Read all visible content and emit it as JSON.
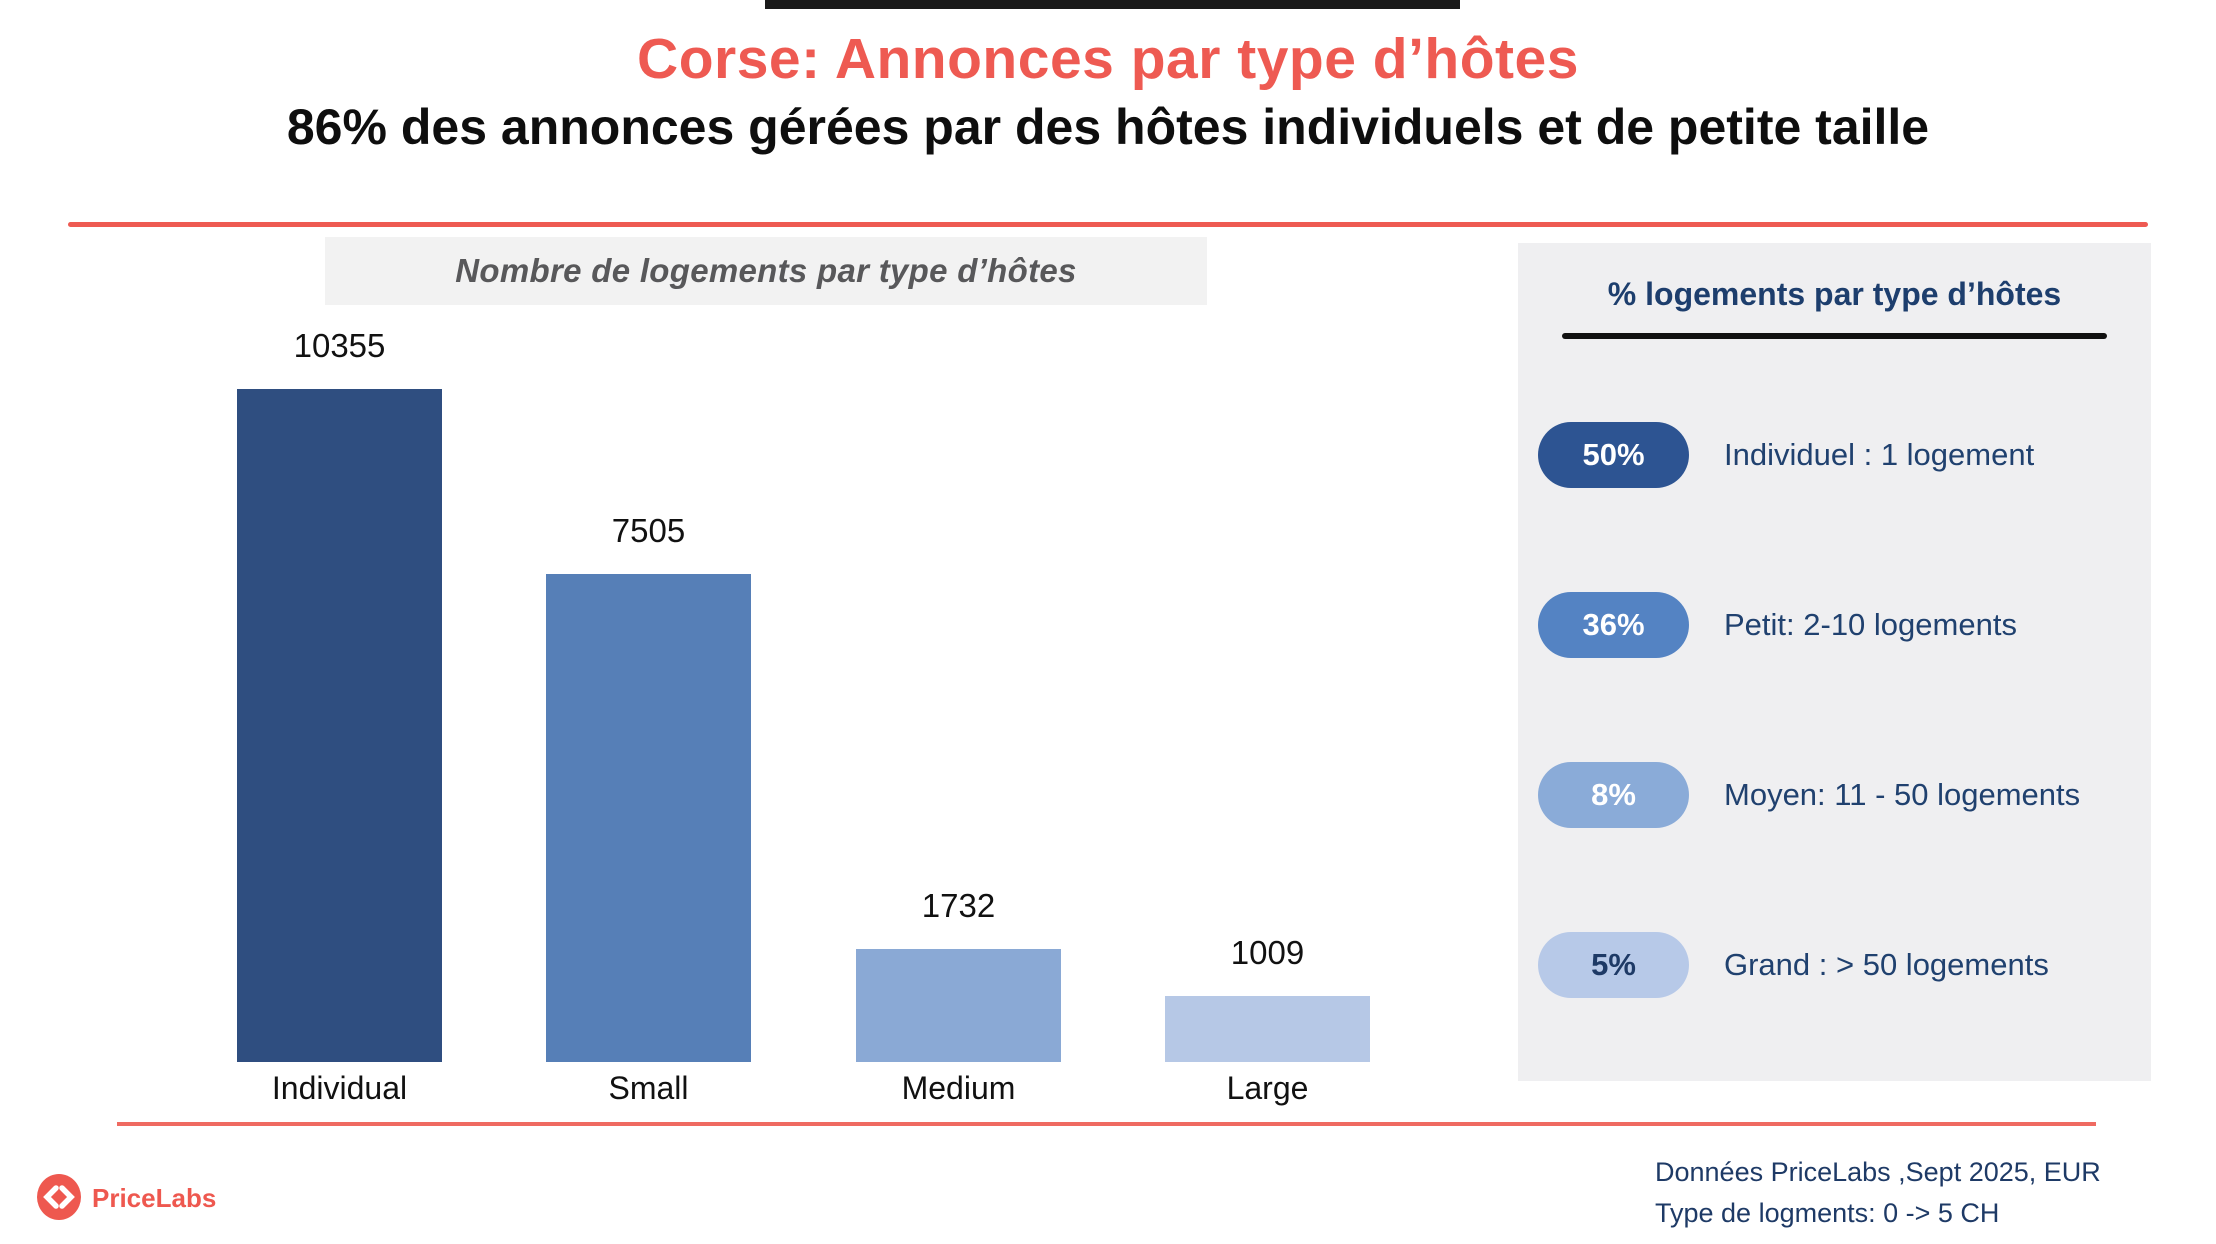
{
  "header": {
    "title": "Corse: Annonces par type d’hôtes",
    "subtitle": "86% des annonces gérées par des hôtes individuels et de petite taille"
  },
  "chart_data": {
    "type": "bar",
    "title": "Nombre de logements par type d’hôtes",
    "categories": [
      "Individual",
      "Small",
      "Medium",
      "Large"
    ],
    "values": [
      10355,
      7505,
      1732,
      1009
    ],
    "value_labels": [
      "10355",
      "7505",
      "1732",
      "1009"
    ],
    "bar_colors": [
      "#2f4e80",
      "#567fb7",
      "#8aa9d5",
      "#b6c8e6"
    ],
    "xlabel": "",
    "ylabel": "",
    "ylim": [
      0,
      10355
    ],
    "grid": false,
    "legend": "none"
  },
  "panel": {
    "title": "% logements par type d’hôtes",
    "items": [
      {
        "pct": "50%",
        "label": "Individuel : 1 logement",
        "color": "#2d5492",
        "text_color": "#ffffff"
      },
      {
        "pct": "36%",
        "label": "Petit: 2-10 logements",
        "color": "#5483c3",
        "text_color": "#ffffff"
      },
      {
        "pct": "8%",
        "label": "Moyen: 11 - 50 logements",
        "color": "#8aabd8",
        "text_color": "#ffffff"
      },
      {
        "pct": "5%",
        "label": "Grand : > 50 logements",
        "color": "#b7c9e8",
        "text_color": "#1e3a66"
      }
    ]
  },
  "footer": {
    "brand": "PriceLabs",
    "note_line1": "Données PriceLabs ,Sept 2025, EUR",
    "note_line2": "Type de logments: 0 -> 5 CH"
  },
  "colors": {
    "accent_red": "#ee5a52",
    "rule_bottom_red": "#ef6a61",
    "navy_text": "#1e3a66",
    "panel_background": "#efeff1",
    "chart_header_background": "#f2f2f2",
    "chart_header_text": "#58585a",
    "brand_red": "#ee584f",
    "top_artifact": "#1a1a1a"
  }
}
